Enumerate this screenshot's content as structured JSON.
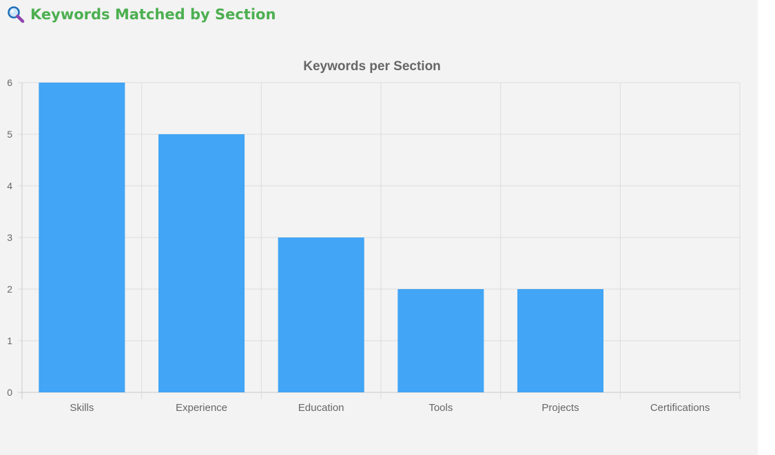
{
  "header": {
    "icon": "magnifying-glass-icon",
    "title": "Keywords Matched by Section"
  },
  "colors": {
    "title_green": "#4caf50",
    "bar": "#42a5f5",
    "grid": "#dcdcdc",
    "axis_text": "#666666",
    "panel_bg": "#f3f3f3"
  },
  "chart_data": {
    "type": "bar",
    "title": "Keywords per Section",
    "categories": [
      "Skills",
      "Experience",
      "Education",
      "Tools",
      "Projects",
      "Certifications"
    ],
    "values": [
      6,
      5,
      3,
      2,
      2,
      0
    ],
    "yticks": [
      0,
      1,
      2,
      3,
      4,
      5,
      6
    ],
    "ylim": [
      0,
      6
    ],
    "grid": true,
    "legend": "none"
  }
}
